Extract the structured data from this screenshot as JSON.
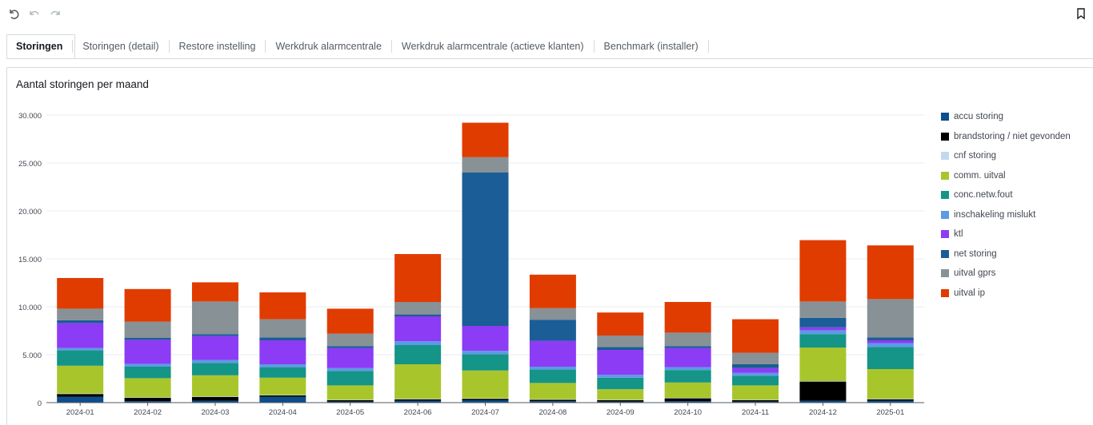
{
  "toolbar": {
    "undo": "undo-icon",
    "back": "back-icon",
    "forward": "forward-icon",
    "bookmark": "bookmark-icon"
  },
  "tabs": [
    {
      "label": "Storingen",
      "active": true
    },
    {
      "label": "Storingen (detail)",
      "active": false
    },
    {
      "label": "Restore instelling",
      "active": false
    },
    {
      "label": "Werkdruk alarmcentrale",
      "active": false
    },
    {
      "label": "Werkdruk alarmcentrale (actieve klanten)",
      "active": false
    },
    {
      "label": "Benchmark (installer)",
      "active": false
    }
  ],
  "chart_data": {
    "type": "bar",
    "stacked": true,
    "title": "Aantal storingen per maand",
    "xlabel": "",
    "ylabel": "",
    "ylim": [
      0,
      30000
    ],
    "yticks": [
      0,
      5000,
      10000,
      15000,
      20000,
      25000,
      30000
    ],
    "ytick_labels": [
      "0",
      "5.000",
      "10.000",
      "15.000",
      "20.000",
      "25.000",
      "30.000"
    ],
    "grid": true,
    "legend_position": "right",
    "categories": [
      "2024-01",
      "2024-02",
      "2024-03",
      "2024-04",
      "2024-05",
      "2024-06",
      "2024-07",
      "2024-08",
      "2024-09",
      "2024-10",
      "2024-11",
      "2024-12",
      "2025-01"
    ],
    "series": [
      {
        "name": "accu storing",
        "color": "#0b4f8c",
        "values": [
          600,
          150,
          200,
          600,
          100,
          200,
          250,
          150,
          100,
          150,
          100,
          200,
          200
        ]
      },
      {
        "name": "brandstoring / niet gevonden",
        "color": "#000000",
        "values": [
          300,
          350,
          400,
          150,
          150,
          150,
          150,
          150,
          150,
          300,
          150,
          2000,
          150
        ]
      },
      {
        "name": "cnf storing",
        "color": "#c1d8ee",
        "values": [
          50,
          50,
          50,
          50,
          50,
          50,
          50,
          50,
          50,
          50,
          50,
          50,
          50
        ]
      },
      {
        "name": "comm. uitval",
        "color": "#a8c62c",
        "values": [
          2900,
          2000,
          2200,
          1800,
          1500,
          3600,
          2900,
          1700,
          1100,
          1600,
          1500,
          3500,
          3100
        ]
      },
      {
        "name": "conc.netw.fout",
        "color": "#159488",
        "values": [
          1600,
          1200,
          1300,
          1100,
          1500,
          2000,
          1700,
          1400,
          1200,
          1300,
          1000,
          1400,
          2300
        ]
      },
      {
        "name": "inschakeling mislukt",
        "color": "#5b9be3",
        "values": [
          250,
          300,
          300,
          300,
          300,
          400,
          350,
          300,
          300,
          300,
          300,
          400,
          400
        ]
      },
      {
        "name": "ktl",
        "color": "#8c3cf5",
        "values": [
          2600,
          2500,
          2500,
          2500,
          2100,
          2600,
          2600,
          2700,
          2600,
          2000,
          500,
          300,
          300
        ]
      },
      {
        "name": "net storing",
        "color": "#1b5d96",
        "values": [
          300,
          200,
          200,
          300,
          200,
          200,
          16000,
          2200,
          300,
          200,
          400,
          1000,
          300
        ]
      },
      {
        "name": "uitval gprs",
        "color": "#879196",
        "values": [
          1200,
          1700,
          3400,
          1900,
          1300,
          1300,
          1600,
          1200,
          1200,
          1400,
          1200,
          1700,
          4000
        ]
      },
      {
        "name": "uitval ip",
        "color": "#e03c00",
        "values": [
          3200,
          3400,
          2000,
          2800,
          2600,
          5000,
          3600,
          3500,
          2400,
          3200,
          3500,
          6400,
          5600
        ]
      }
    ]
  }
}
